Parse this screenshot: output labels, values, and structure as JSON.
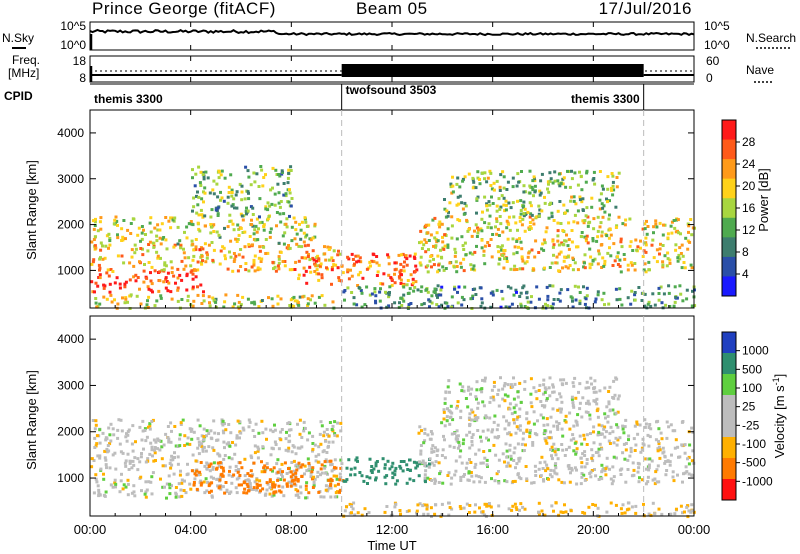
{
  "header": {
    "title": "Prince George (fitACF)",
    "beam": "Beam 05",
    "date": "17/Jul/2016"
  },
  "nsky_panel": {
    "left_label": "N.Sky",
    "right_label": "N.Search",
    "y_ticks_left": [
      "10^5",
      "10^0"
    ],
    "y_ticks_right": [
      "10^5",
      "10^0"
    ]
  },
  "freq_panel": {
    "left_label_line1": "Freq.",
    "left_label_line2": "[MHz]",
    "right_label": "Nave",
    "y_ticks_left": [
      "18",
      "8"
    ],
    "y_ticks_right": [
      "60",
      "0"
    ]
  },
  "cpid_panel": {
    "label": "CPID",
    "modes": [
      {
        "name": "themis 3300",
        "start_hour": 0,
        "end_hour": 10
      },
      {
        "name": "twofsound 3503",
        "start_hour": 10,
        "end_hour": 22
      },
      {
        "name": "themis 3300",
        "start_hour": 22,
        "end_hour": 24
      }
    ]
  },
  "power_panel": {
    "ylabel": "Slant Range [km]",
    "y_ticks": [
      "1000",
      "2000",
      "3000",
      "4000"
    ],
    "colorbar_label": "Power [dB]",
    "colorbar_ticks": [
      "4",
      "8",
      "12",
      "16",
      "20",
      "24",
      "28"
    ]
  },
  "velocity_panel": {
    "ylabel": "Slant Range [km]",
    "y_ticks": [
      "1000",
      "2000",
      "3000",
      "4000"
    ],
    "colorbar_label": "Velocity [m s^-1]",
    "colorbar_ticks": [
      "1000",
      "500",
      "100",
      "25",
      "-25",
      "-100",
      "-500",
      "-1000"
    ]
  },
  "x_axis": {
    "label": "Time UT",
    "ticks": [
      "00:00",
      "04:00",
      "08:00",
      "12:00",
      "16:00",
      "20:00",
      "00:00"
    ]
  },
  "colors": {
    "power_scale": [
      "#1a1aff",
      "#2a4fa8",
      "#3d7d6e",
      "#4faa4f",
      "#a8d640",
      "#ffd21a",
      "#ff9a1a",
      "#ff5a1a",
      "#ff1a1a"
    ],
    "velocity_scale": [
      "#2040c0",
      "#2f8f6f",
      "#5fcf3f",
      "#bdbdbd",
      "#bdbdbd",
      "#ffb000",
      "#ff7a00",
      "#ff1010"
    ]
  },
  "chart_data": [
    {
      "type": "heatmap",
      "title": "Prince George (fitACF)",
      "ylabel": "Slant Range [km]",
      "xlabel": "Time UT",
      "ylim": [
        180,
        4500
      ],
      "x": [
        "00:00",
        "04:00",
        "08:00",
        "12:00",
        "16:00",
        "20:00",
        "00:00"
      ],
      "colorbar": "Power [dB]",
      "clim": [
        0,
        30
      ],
      "scatter_regions": [
        {
          "t0": 0.0,
          "t1": 10.0,
          "r0": 200,
          "r1": 500,
          "level": 0.55
        },
        {
          "t0": 0.0,
          "t1": 4.5,
          "r0": 550,
          "r1": 1000,
          "level": 0.95
        },
        {
          "t0": 0.0,
          "t1": 10.0,
          "r0": 1000,
          "r1": 1600,
          "level": 0.7
        },
        {
          "t0": 0.0,
          "t1": 9.0,
          "r0": 1600,
          "r1": 2200,
          "level": 0.55
        },
        {
          "t0": 4.0,
          "t1": 8.0,
          "r0": 2200,
          "r1": 3300,
          "level": 0.4
        },
        {
          "t0": 8.0,
          "t1": 13.0,
          "r0": 700,
          "r1": 1400,
          "level": 0.8
        },
        {
          "t0": 10.0,
          "t1": 24.0,
          "r0": 200,
          "r1": 700,
          "level": 0.3
        },
        {
          "t0": 13.0,
          "t1": 24.0,
          "r0": 1000,
          "r1": 2200,
          "level": 0.6
        },
        {
          "t0": 14.0,
          "t1": 21.0,
          "r0": 2200,
          "r1": 3200,
          "level": 0.45
        }
      ]
    },
    {
      "type": "heatmap",
      "ylabel": "Slant Range [km]",
      "xlabel": "Time UT",
      "ylim": [
        180,
        4500
      ],
      "x": [
        "00:00",
        "04:00",
        "08:00",
        "12:00",
        "16:00",
        "20:00",
        "00:00"
      ],
      "colorbar": "Velocity [m s^-1]",
      "clim": [
        -1000,
        1000
      ],
      "scatter_regions": [
        {
          "t0": 0.0,
          "t1": 10.0,
          "r0": 600,
          "r1": 2300,
          "velocity": 0
        },
        {
          "t0": 4.0,
          "t1": 8.0,
          "r0": 700,
          "r1": 1400,
          "velocity": -500
        },
        {
          "t0": 8.0,
          "t1": 10.0,
          "r0": 700,
          "r1": 1400,
          "velocity": -300
        },
        {
          "t0": 10.0,
          "t1": 13.5,
          "r0": 900,
          "r1": 1500,
          "velocity": 400
        },
        {
          "t0": 10.0,
          "t1": 24.0,
          "r0": 200,
          "r1": 500,
          "velocity": -60
        },
        {
          "t0": 13.0,
          "t1": 24.0,
          "r0": 900,
          "r1": 2300,
          "velocity": 0
        },
        {
          "t0": 14.0,
          "t1": 21.0,
          "r0": 2300,
          "r1": 3200,
          "velocity": 0
        }
      ]
    }
  ]
}
